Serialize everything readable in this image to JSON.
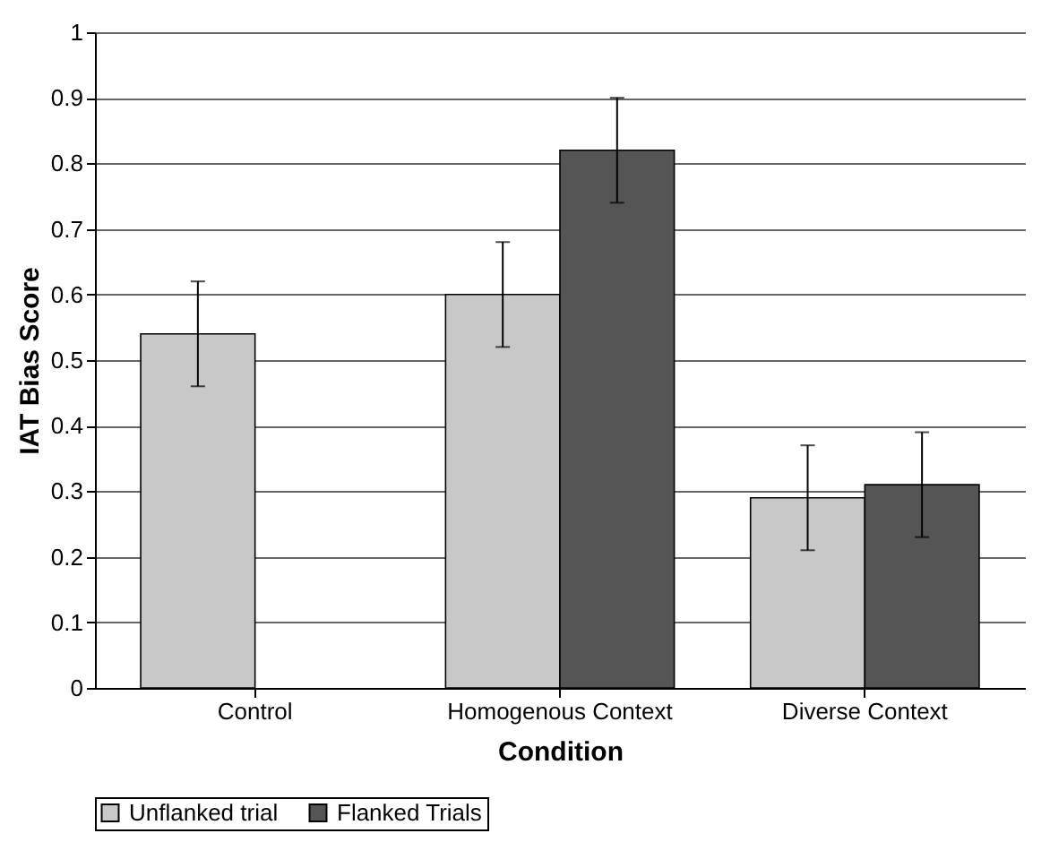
{
  "chart_data": {
    "type": "bar",
    "xlabel": "Condition",
    "ylabel": "IAT Bias Score",
    "categories": [
      "Control",
      "Homogenous Context",
      "Diverse Context"
    ],
    "series": [
      {
        "name": "Unflanked trial",
        "color": "#c8c8c8",
        "values": [
          0.54,
          0.6,
          0.29
        ],
        "errors": [
          0.08,
          0.08,
          0.08
        ]
      },
      {
        "name": "Flanked Trials",
        "color": "#555555",
        "values": [
          null,
          0.82,
          0.31
        ],
        "errors": [
          null,
          0.08,
          0.08
        ]
      }
    ],
    "ylim": [
      0,
      1
    ],
    "yticks": [
      0,
      0.1,
      0.2,
      0.3,
      0.4,
      0.5,
      0.6,
      0.7,
      0.8,
      0.9,
      1
    ],
    "grid": "y",
    "legend": "bottom"
  }
}
